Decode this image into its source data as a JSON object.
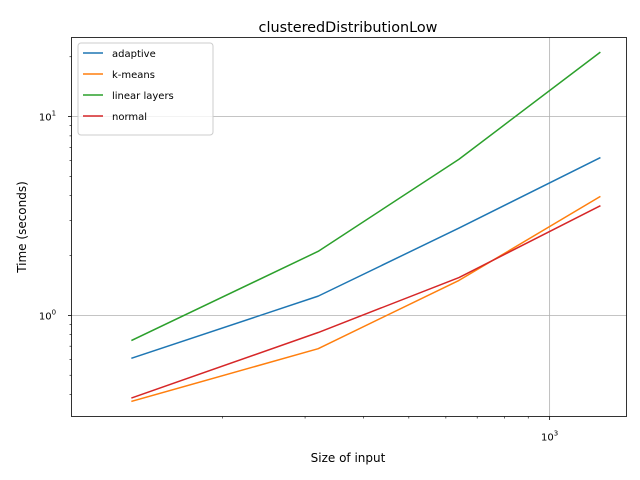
{
  "chart_data": {
    "type": "line",
    "title": "clusteredDistributionLow",
    "xlabel": "Size of input",
    "ylabel": "Time (seconds)",
    "xscale": "log",
    "yscale": "log",
    "xlim": [
      95,
      1460
    ],
    "ylim": [
      0.31,
      25
    ],
    "grid": "major ticks only",
    "legend_position": "upper left",
    "x_major_ticks": [
      {
        "value": 1000,
        "base": "10",
        "exp": "3"
      }
    ],
    "y_major_ticks": [
      {
        "value": 1,
        "base": "10",
        "exp": "0"
      },
      {
        "value": 10,
        "base": "10",
        "exp": "1"
      }
    ],
    "x_minor_ticks": [
      200,
      300,
      400,
      500,
      600,
      700,
      800,
      900
    ],
    "y_minor_ticks": [
      0.4,
      0.5,
      0.6,
      0.7,
      0.8,
      0.9,
      2,
      3,
      4,
      5,
      6,
      7,
      8,
      9,
      20
    ],
    "x": [
      128,
      320,
      640,
      1280
    ],
    "series": [
      {
        "name": "adaptive",
        "color": "#1f77b4",
        "values": [
          0.61,
          1.25,
          2.75,
          6.2
        ]
      },
      {
        "name": "k-means",
        "color": "#ff7f0e",
        "values": [
          0.37,
          0.68,
          1.5,
          3.95
        ]
      },
      {
        "name": "linear layers",
        "color": "#2ca02c",
        "values": [
          0.75,
          2.1,
          6.1,
          21.0
        ]
      },
      {
        "name": "normal",
        "color": "#d62728",
        "values": [
          0.385,
          0.82,
          1.55,
          3.55
        ]
      }
    ]
  }
}
